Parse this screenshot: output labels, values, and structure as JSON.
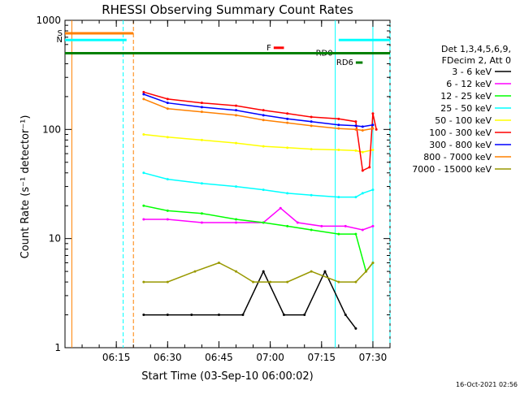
{
  "chart_data": {
    "type": "line",
    "title": "RHESSI Observing Summary Count Rates",
    "xlabel": "Start Time (03-Sep-10 06:00:02)",
    "ylabel": "Count Rate (s⁻¹ detector⁻¹)",
    "xlim": [
      "06:00",
      "07:35"
    ],
    "ylim": [
      1,
      1000
    ],
    "yscale": "log",
    "x_ticks": [
      "06:15",
      "06:30",
      "06:45",
      "07:00",
      "07:15",
      "07:30"
    ],
    "y_ticks": [
      "1",
      "10",
      "100",
      "1000"
    ],
    "legend_header": [
      "Det 1,3,4,5,6,9,",
      "FDecim 2, Att 0"
    ],
    "legend_position": "right",
    "footer_stamp": "16-Oct-2021 02:56",
    "series": [
      {
        "name": "3 - 6 keV",
        "color": "#000000",
        "x": [
          "06:23",
          "06:30",
          "06:37",
          "06:45",
          "06:52",
          "06:58",
          "07:04",
          "07:10",
          "07:16",
          "07:22",
          "07:25"
        ],
        "values": [
          2,
          2,
          2,
          2,
          2,
          5,
          2,
          2,
          5,
          2,
          1.5
        ]
      },
      {
        "name": "6 - 12 keV",
        "color": "#ff00ff",
        "x": [
          "06:23",
          "06:30",
          "06:40",
          "06:50",
          "06:58",
          "07:03",
          "07:08",
          "07:15",
          "07:22",
          "07:27",
          "07:30"
        ],
        "values": [
          15,
          15,
          14,
          14,
          14,
          19,
          14,
          13,
          13,
          12,
          13
        ]
      },
      {
        "name": "12 - 25 keV",
        "color": "#00ff00",
        "x": [
          "06:23",
          "06:30",
          "06:40",
          "06:50",
          "06:58",
          "07:05",
          "07:12",
          "07:20",
          "07:25",
          "07:28",
          "07:30"
        ],
        "values": [
          20,
          18,
          17,
          15,
          14,
          13,
          12,
          11,
          11,
          5,
          6
        ]
      },
      {
        "name": "25 - 50 keV",
        "color": "#00ffff",
        "x": [
          "06:23",
          "06:30",
          "06:40",
          "06:50",
          "06:58",
          "07:05",
          "07:12",
          "07:20",
          "07:25",
          "07:27",
          "07:30"
        ],
        "values": [
          40,
          35,
          32,
          30,
          28,
          26,
          25,
          24,
          24,
          26,
          28
        ]
      },
      {
        "name": "50 - 100 keV",
        "color": "#ffff00",
        "x": [
          "06:23",
          "06:30",
          "06:40",
          "06:50",
          "06:58",
          "07:05",
          "07:12",
          "07:20",
          "07:25",
          "07:27",
          "07:30"
        ],
        "values": [
          90,
          85,
          80,
          75,
          70,
          68,
          66,
          65,
          64,
          62,
          65
        ]
      },
      {
        "name": "100 - 300 keV",
        "color": "#ff0000",
        "x": [
          "06:23",
          "06:30",
          "06:40",
          "06:50",
          "06:58",
          "07:05",
          "07:12",
          "07:20",
          "07:25",
          "07:27",
          "07:29",
          "07:30",
          "07:31"
        ],
        "values": [
          220,
          190,
          175,
          165,
          150,
          140,
          130,
          125,
          118,
          42,
          45,
          140,
          100
        ]
      },
      {
        "name": "300 - 800 keV",
        "color": "#0000ff",
        "x": [
          "06:23",
          "06:30",
          "06:40",
          "06:50",
          "06:58",
          "07:05",
          "07:12",
          "07:20",
          "07:25",
          "07:27",
          "07:30"
        ],
        "values": [
          210,
          175,
          160,
          150,
          135,
          125,
          118,
          110,
          108,
          106,
          110
        ]
      },
      {
        "name": "800 - 7000 keV",
        "color": "#ff8000",
        "x": [
          "06:23",
          "06:30",
          "06:40",
          "06:50",
          "06:58",
          "07:05",
          "07:12",
          "07:20",
          "07:25",
          "07:27",
          "07:30"
        ],
        "values": [
          190,
          155,
          145,
          135,
          122,
          115,
          108,
          102,
          100,
          98,
          102
        ]
      },
      {
        "name": "7000 - 15000 keV",
        "color": "#999900",
        "x": [
          "06:23",
          "06:30",
          "06:38",
          "06:45",
          "06:50",
          "06:55",
          "07:00",
          "07:05",
          "07:12",
          "07:20",
          "07:25",
          "07:28",
          "07:30"
        ],
        "values": [
          4,
          4,
          5,
          6,
          5,
          4,
          4,
          4,
          5,
          4,
          4,
          5,
          6
        ]
      }
    ],
    "flags": [
      {
        "label": "F",
        "color": "#ff0000",
        "x_start": "07:01",
        "x_end": "07:04",
        "level": 560
      },
      {
        "label": "RD0",
        "color": "#008000",
        "x_start": "07:19",
        "x_end": "07:35",
        "level": 500
      },
      {
        "label": "RD6",
        "color": "#008000",
        "x_start": "07:25",
        "x_end": "07:27",
        "level": 410
      },
      {
        "label": "S",
        "color": "#ff8000",
        "x_start": "06:00",
        "x_end": "06:20",
        "level": 760
      },
      {
        "label": "N",
        "color": "#00ffff",
        "x_start": "06:00",
        "x_end": "06:18",
        "level": 660
      },
      {
        "label": "",
        "color": "#00ffff",
        "x_start": "07:20",
        "x_end": "07:35",
        "level": 660
      },
      {
        "label": "",
        "color": "#008000",
        "x_start": "06:00",
        "x_end": "07:35",
        "level": 500
      }
    ],
    "vertical_markers": [
      {
        "x": "06:02",
        "color": "#ff8000",
        "style": "solid"
      },
      {
        "x": "06:17",
        "color": "#00ffff",
        "style": "dashed"
      },
      {
        "x": "06:20",
        "color": "#ff8000",
        "style": "dashed"
      },
      {
        "x": "07:19",
        "color": "#00ffff",
        "style": "solid"
      },
      {
        "x": "07:30",
        "color": "#00ffff",
        "style": "solid"
      },
      {
        "x": "07:35",
        "color": "#00ffff",
        "style": "dashed"
      }
    ]
  }
}
